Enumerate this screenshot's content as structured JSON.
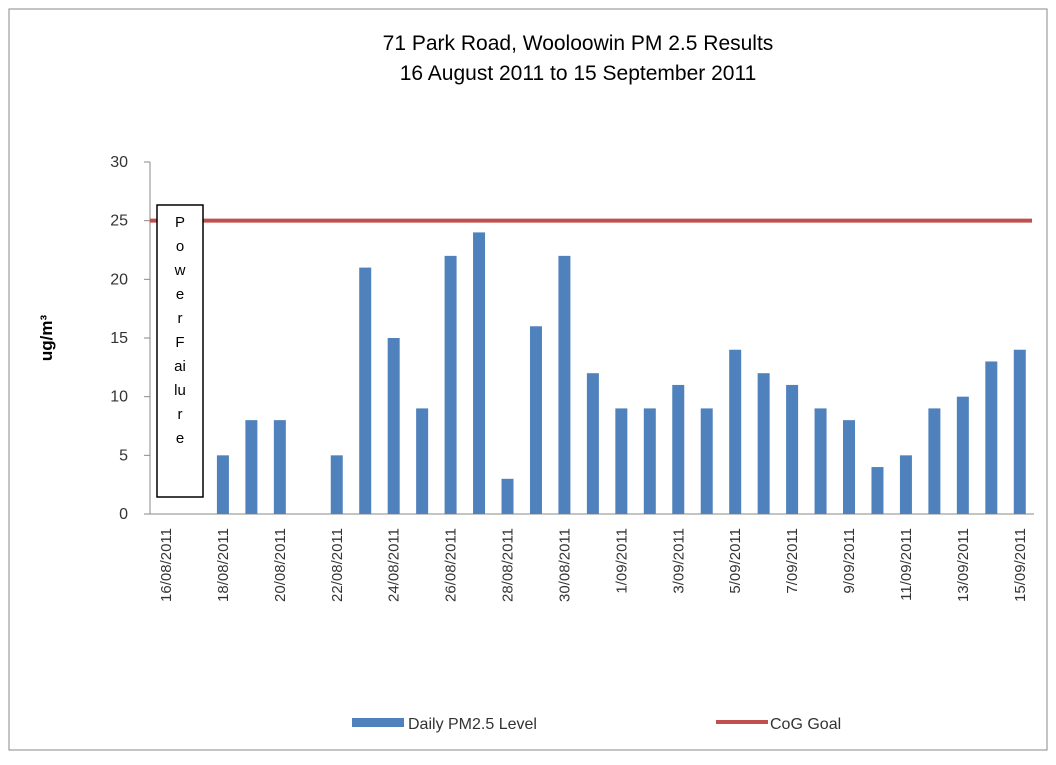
{
  "chart_data": {
    "type": "bar",
    "title": "71 Park Road, Wooloowin PM 2.5 Results",
    "subtitle": "16 August  2011 to 15 September 2011",
    "y_label": "ug/m³",
    "annotation": "Power Failure",
    "categories": [
      "16/08/2011",
      null,
      "18/08/2011",
      null,
      "20/08/2011",
      null,
      "22/08/2011",
      null,
      "24/08/2011",
      null,
      "26/08/2011",
      null,
      "28/08/2011",
      null,
      "30/08/2011",
      null,
      "1/09/2011",
      null,
      "3/09/2011",
      null,
      "5/09/2011",
      null,
      "7/09/2011",
      null,
      "9/09/2011",
      null,
      "11/09/2011",
      null,
      "13/09/2011",
      null,
      "15/09/2011"
    ],
    "series": [
      {
        "name": "Daily PM2.5 Level",
        "color": "#4f81bd",
        "values": [
          null,
          null,
          5,
          8,
          8,
          null,
          5,
          21,
          15,
          9,
          22,
          24,
          3,
          16,
          22,
          12,
          9,
          9,
          11,
          9,
          14,
          12,
          11,
          9,
          8,
          4,
          5,
          9,
          10,
          13,
          14
        ]
      }
    ],
    "goal": {
      "name": "CoG Goal",
      "value": 25,
      "color": "#c0504d"
    },
    "ylim": [
      0,
      30
    ],
    "yticks": [
      0,
      5,
      10,
      15,
      20,
      25,
      30
    ]
  }
}
